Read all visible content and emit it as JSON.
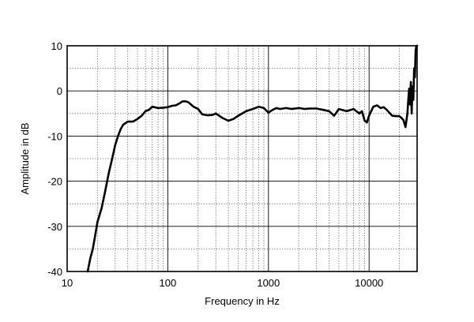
{
  "chart_data": {
    "type": "line",
    "title": "",
    "xlabel": "Frequency  in Hz",
    "ylabel": "Amplitude in dB",
    "xscale": "log",
    "xlim": [
      10,
      30000
    ],
    "ylim": [
      -40,
      10
    ],
    "grid": true,
    "legend": "none",
    "x_ticks": [
      10,
      100,
      1000,
      10000
    ],
    "x_tick_labels": [
      "10",
      "100",
      "1000",
      "10000"
    ],
    "y_ticks": [
      10,
      0,
      -10,
      -20,
      -30,
      -40
    ],
    "y_tick_labels": [
      "10",
      "0",
      "-10",
      "-20",
      "-30",
      "-40"
    ],
    "series": [
      {
        "color": "#000000",
        "x": [
          16,
          17,
          18,
          19,
          20,
          22,
          24,
          26,
          28,
          30,
          32,
          34,
          36,
          40,
          45,
          50,
          55,
          60,
          65,
          70,
          80,
          90,
          100,
          110,
          120,
          130,
          140,
          150,
          160,
          180,
          200,
          220,
          250,
          280,
          300,
          350,
          400,
          450,
          500,
          600,
          700,
          800,
          900,
          1000,
          1100,
          1200,
          1300,
          1500,
          1700,
          2000,
          2300,
          2600,
          3000,
          3500,
          4000,
          4500,
          5000,
          6000,
          7000,
          8000,
          8500,
          9000,
          9500,
          10000,
          11000,
          12000,
          13000,
          14000,
          15000,
          17000,
          19000,
          20000,
          21000,
          22000,
          23000,
          24000,
          24500,
          25000,
          25500,
          26000,
          26500,
          27000,
          27500,
          28000,
          28500,
          29000,
          29500,
          30000
        ],
        "y": [
          -40,
          -37,
          -35,
          -32,
          -29,
          -26,
          -22,
          -18,
          -15,
          -12,
          -10,
          -8.5,
          -7.5,
          -6.8,
          -6.8,
          -6.2,
          -5.5,
          -4.5,
          -4.2,
          -3.5,
          -3.8,
          -3.7,
          -3.6,
          -3.3,
          -3.2,
          -2.8,
          -2.3,
          -2.3,
          -2.5,
          -3.5,
          -4.0,
          -5.2,
          -5.4,
          -5.3,
          -5.0,
          -6.0,
          -6.6,
          -6.2,
          -5.5,
          -4.5,
          -4.0,
          -3.5,
          -3.8,
          -4.8,
          -4.2,
          -3.8,
          -4.0,
          -3.8,
          -4.0,
          -3.8,
          -4.0,
          -3.9,
          -3.9,
          -4.2,
          -4.5,
          -5.5,
          -4.0,
          -4.5,
          -4.0,
          -5.0,
          -4.5,
          -6.5,
          -7.0,
          -5.5,
          -3.5,
          -3.2,
          -3.8,
          -3.6,
          -4.2,
          -5.5,
          -5.6,
          -5.6,
          -6.0,
          -6.5,
          -8.0,
          -5.0,
          -2.0,
          0.5,
          -3.0,
          2.0,
          -5.0,
          1.0,
          -2.0,
          5.0,
          3.0,
          9.0,
          10.0,
          10.0
        ]
      }
    ]
  }
}
